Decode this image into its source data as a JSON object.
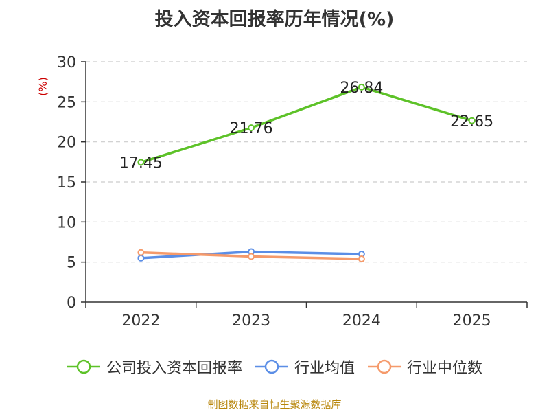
{
  "chart_data": {
    "type": "line",
    "title": "投入资本回报率历年情况(%)",
    "ylabel": "(%)",
    "xlabel": "",
    "ylim": [
      0,
      30
    ],
    "yticks": [
      0,
      5,
      10,
      15,
      20,
      25,
      30
    ],
    "categories": [
      "2022",
      "2023",
      "2024",
      "2025"
    ],
    "grid": "horizontal-dashed",
    "legend_position": "bottom",
    "series": [
      {
        "name": "公司投入资本回报率",
        "color": "#5dc228",
        "values": [
          17.45,
          21.76,
          26.84,
          22.65
        ],
        "labels": [
          "17.45",
          "21.76",
          "26.84",
          "22.65"
        ]
      },
      {
        "name": "行业均值",
        "color": "#5b8ee6",
        "values": [
          5.5,
          6.3,
          6.0,
          null
        ]
      },
      {
        "name": "行业中位数",
        "color": "#f59a6b",
        "values": [
          6.2,
          5.7,
          5.4,
          null
        ]
      }
    ]
  },
  "source_note": "制图数据来自恒生聚源数据库"
}
